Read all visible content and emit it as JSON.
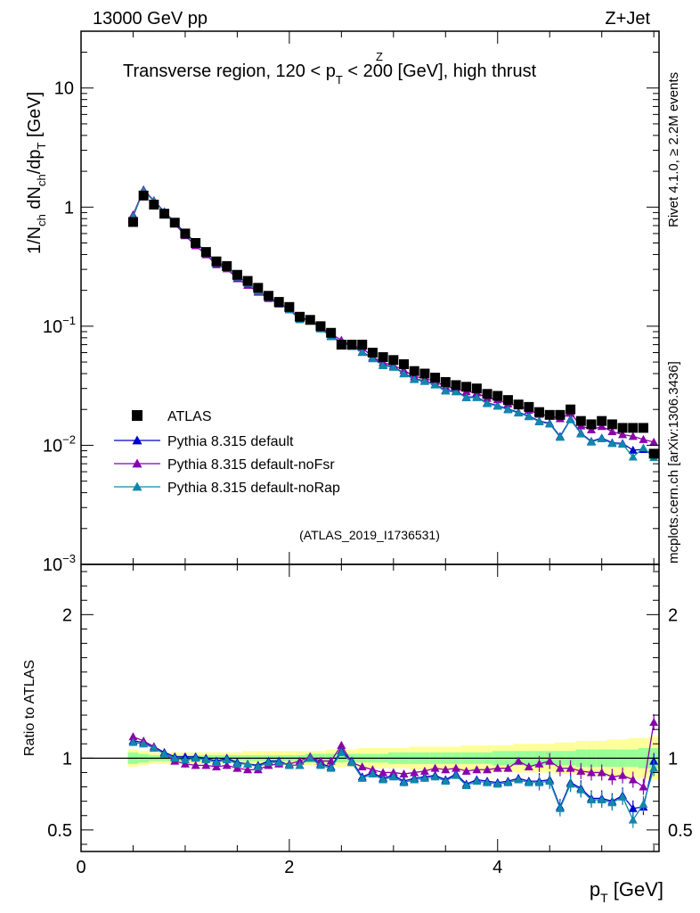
{
  "header": {
    "energy_label": "13000 GeV pp",
    "process_label": "Z+Jet",
    "plot_title_main": "Transverse region, 120 < p",
    "plot_title_sup": "Z",
    "plot_title_sub": "T",
    "plot_title_rest": " < 200 [GeV], high thrust"
  },
  "side": {
    "rivet_label": "Rivet 4.1.0, ≥ 2.2M events",
    "mcplots_label": "mcplots.cern.ch [arXiv:1306.3436]"
  },
  "analysis_label": "(ATLAS_2019_I1736531)",
  "colors": {
    "atlas": "#000000",
    "default": "#0000cc",
    "noFsr": "#8800aa",
    "noRap": "#1188aa",
    "band_outer": "#ffff99",
    "band_inner": "#99ff99"
  },
  "chart_data": {
    "type": "scatter",
    "top_panel": {
      "yscale": "log",
      "ylim": [
        0.001,
        30
      ],
      "xlim": [
        0,
        5.55
      ],
      "ylabel": "1/N_ch dN_ch/dp_T [GeV]",
      "yticks": [
        {
          "value": 10,
          "label": "10"
        },
        {
          "value": 1,
          "label": "1"
        },
        {
          "value": 0.1,
          "label": "10",
          "exp": "−1"
        },
        {
          "value": 0.01,
          "label": "10",
          "exp": "−2"
        },
        {
          "value": 0.001,
          "label": "10",
          "exp": "−3"
        }
      ]
    },
    "ratio_panel": {
      "ylim": [
        0.35,
        2.35
      ],
      "ylabel": "Ratio to ATLAS",
      "yticks": [
        {
          "value": 2,
          "label": "2"
        },
        {
          "value": 1,
          "label": "1"
        },
        {
          "value": 0.5,
          "label": "0.5"
        }
      ]
    },
    "xlabel": "p",
    "xlabel_sub": "T",
    "xlabel_unit": " [GeV]",
    "xticks": [
      {
        "value": 0,
        "label": "0"
      },
      {
        "value": 2,
        "label": "2"
      },
      {
        "value": 4,
        "label": "4"
      }
    ],
    "x": [
      0.5,
      0.6,
      0.7,
      0.8,
      0.9,
      1.0,
      1.1,
      1.2,
      1.3,
      1.4,
      1.5,
      1.6,
      1.7,
      1.8,
      1.9,
      2.0,
      2.1,
      2.2,
      2.3,
      2.4,
      2.5,
      2.6,
      2.7,
      2.8,
      2.9,
      3.0,
      3.1,
      3.2,
      3.3,
      3.4,
      3.5,
      3.6,
      3.7,
      3.8,
      3.9,
      4.0,
      4.1,
      4.2,
      4.3,
      4.4,
      4.5,
      4.6,
      4.7,
      4.8,
      4.9,
      5.0,
      5.1,
      5.2,
      5.3,
      5.4,
      5.5
    ],
    "series": [
      {
        "name": "ATLAS",
        "marker": "square",
        "color_key": "atlas",
        "values": [
          0.75,
          1.25,
          1.05,
          0.88,
          0.74,
          0.6,
          0.5,
          0.42,
          0.35,
          0.32,
          0.27,
          0.24,
          0.21,
          0.18,
          0.16,
          0.145,
          0.12,
          0.113,
          0.1,
          0.088,
          0.07,
          0.07,
          0.07,
          0.06,
          0.055,
          0.052,
          0.048,
          0.042,
          0.04,
          0.037,
          0.034,
          0.032,
          0.031,
          0.03,
          0.027,
          0.026,
          0.024,
          0.022,
          0.021,
          0.019,
          0.018,
          0.018,
          0.02,
          0.016,
          0.015,
          0.016,
          0.015,
          0.014,
          0.014,
          0.014,
          0.0085
        ]
      },
      {
        "name": "Pythia 8.315 default",
        "marker": "triangle",
        "color_key": "default",
        "ratio": [
          1.12,
          1.11,
          1.08,
          1.04,
          1.01,
          1.01,
          1.01,
          1.0,
          0.98,
          1.0,
          0.97,
          0.96,
          0.95,
          0.98,
          0.98,
          0.95,
          0.95,
          1.01,
          0.96,
          0.94,
          1.05,
          0.98,
          0.87,
          0.9,
          0.86,
          0.88,
          0.84,
          0.86,
          0.87,
          0.88,
          0.85,
          0.89,
          0.82,
          0.85,
          0.84,
          0.83,
          0.84,
          0.86,
          0.84,
          0.84,
          0.85,
          0.66,
          0.83,
          0.79,
          0.72,
          0.72,
          0.7,
          0.74,
          0.65,
          0.66,
          0.98
        ]
      },
      {
        "name": "Pythia 8.315 default-noFsr",
        "marker": "triangle",
        "color_key": "noFsr",
        "ratio": [
          1.15,
          1.12,
          1.08,
          1.03,
          0.98,
          0.96,
          0.95,
          0.95,
          0.94,
          0.95,
          0.93,
          0.92,
          0.92,
          0.95,
          0.96,
          0.96,
          0.98,
          1.01,
          0.98,
          0.98,
          1.09,
          0.97,
          0.94,
          0.92,
          0.9,
          0.9,
          0.89,
          0.9,
          0.91,
          0.93,
          0.92,
          0.93,
          0.91,
          0.92,
          0.92,
          0.93,
          0.93,
          0.98,
          0.94,
          0.96,
          0.98,
          0.93,
          0.93,
          0.91,
          0.9,
          0.9,
          0.87,
          0.88,
          0.85,
          0.8,
          1.25
        ]
      },
      {
        "name": "Pythia 8.315 default-noRap",
        "marker": "triangle",
        "color_key": "noRap",
        "ratio": [
          1.11,
          1.1,
          1.07,
          1.03,
          1.0,
          0.99,
          1.0,
          0.99,
          0.97,
          0.99,
          0.96,
          0.96,
          0.94,
          0.97,
          0.97,
          0.95,
          0.95,
          1.0,
          0.95,
          0.93,
          1.04,
          0.97,
          0.86,
          0.89,
          0.85,
          0.87,
          0.83,
          0.85,
          0.86,
          0.87,
          0.84,
          0.88,
          0.81,
          0.84,
          0.83,
          0.82,
          0.83,
          0.85,
          0.83,
          0.83,
          0.84,
          0.65,
          0.82,
          0.78,
          0.71,
          0.71,
          0.69,
          0.73,
          0.57,
          0.68,
          0.93
        ]
      }
    ],
    "band_halfwidth_outer": [
      0.06,
      0.05,
      0.04,
      0.04,
      0.04,
      0.04,
      0.04,
      0.04,
      0.04,
      0.04,
      0.04,
      0.05,
      0.05,
      0.05,
      0.05,
      0.05,
      0.05,
      0.05,
      0.05,
      0.06,
      0.06,
      0.06,
      0.07,
      0.07,
      0.07,
      0.07,
      0.07,
      0.08,
      0.08,
      0.08,
      0.08,
      0.08,
      0.09,
      0.09,
      0.09,
      0.09,
      0.09,
      0.1,
      0.1,
      0.1,
      0.1,
      0.11,
      0.11,
      0.12,
      0.12,
      0.12,
      0.13,
      0.13,
      0.14,
      0.14,
      0.15
    ],
    "band_halfwidth_inner": [
      0.04,
      0.03,
      0.02,
      0.02,
      0.02,
      0.02,
      0.02,
      0.02,
      0.02,
      0.02,
      0.02,
      0.02,
      0.02,
      0.02,
      0.02,
      0.02,
      0.02,
      0.03,
      0.03,
      0.03,
      0.03,
      0.03,
      0.03,
      0.03,
      0.03,
      0.04,
      0.04,
      0.04,
      0.04,
      0.04,
      0.04,
      0.04,
      0.04,
      0.04,
      0.04,
      0.05,
      0.05,
      0.05,
      0.05,
      0.05,
      0.05,
      0.05,
      0.05,
      0.06,
      0.06,
      0.06,
      0.06,
      0.06,
      0.06,
      0.07,
      0.07
    ]
  }
}
